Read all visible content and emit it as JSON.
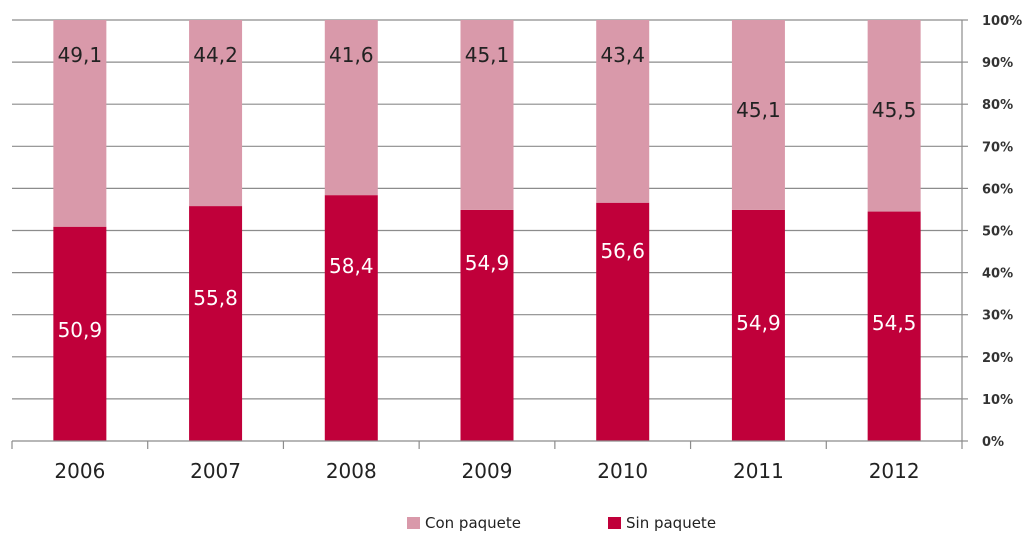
{
  "chart_data": {
    "type": "bar",
    "stacked": true,
    "percent_stacked": true,
    "categories": [
      "2006",
      "2007",
      "2008",
      "2009",
      "2010",
      "2011",
      "2012"
    ],
    "series": [
      {
        "name": "Sin paquete",
        "values": [
          50.9,
          55.8,
          58.4,
          54.9,
          56.6,
          54.9,
          54.5
        ],
        "labels": [
          "50,9",
          "55,8",
          "58,4",
          "54,9",
          "56,6",
          "54,9",
          "54,5"
        ],
        "color": "#c0003a"
      },
      {
        "name": "Con paquete",
        "values": [
          49.1,
          44.2,
          41.6,
          45.1,
          43.4,
          45.1,
          45.5
        ],
        "labels": [
          "49,1",
          "44,2",
          "41,6",
          "45,1",
          "43,4",
          "45,1",
          "45,5"
        ],
        "color": "#d999aa"
      }
    ],
    "y_ticks": [
      "0%",
      "10%",
      "20%",
      "30%",
      "40%",
      "50%",
      "60%",
      "70%",
      "80%",
      "90%",
      "100%"
    ],
    "ylim": [
      0,
      100
    ],
    "y_axis_side": "right",
    "grid": true,
    "legend": [
      "Con paquete",
      "Sin paquete"
    ],
    "legend_position": "bottom"
  }
}
